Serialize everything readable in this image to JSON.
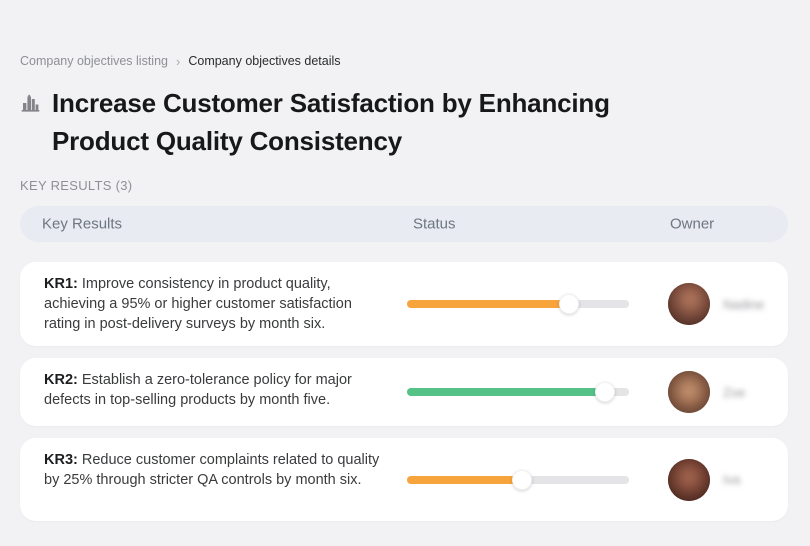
{
  "breadcrumb": {
    "previous": "Company objectives listing",
    "separator": "›",
    "current": "Company objectives details"
  },
  "header": {
    "icon": "buildings-icon",
    "title": "Increase Customer Satisfaction by Enhancing Product Quality Consistency"
  },
  "section": {
    "label": "KEY RESULTS (3)"
  },
  "table": {
    "columns": [
      "Key Results",
      "Status",
      "Owner"
    ],
    "track_color": "#e4e4e6",
    "rows": [
      {
        "kr_label": "KR1:",
        "text": " Improve consistency in product quality, achieving a 95% or higher customer satisfaction rating in post-delivery surveys by month six.",
        "progress_percent": 73,
        "progress_color": "#f8a43d",
        "owner": "Nadine"
      },
      {
        "kr_label": "KR2:",
        "text": " Establish a zero-tolerance policy for major defects in top-selling products by month five.",
        "progress_percent": 89,
        "progress_color": "#55c287",
        "owner": "Zoe"
      },
      {
        "kr_label": "KR3:",
        "text": " Reduce customer complaints related to quality by 25% through stricter QA controls by month six.",
        "progress_percent": 52,
        "progress_color": "#f8a43d",
        "owner": "Iva"
      }
    ]
  }
}
